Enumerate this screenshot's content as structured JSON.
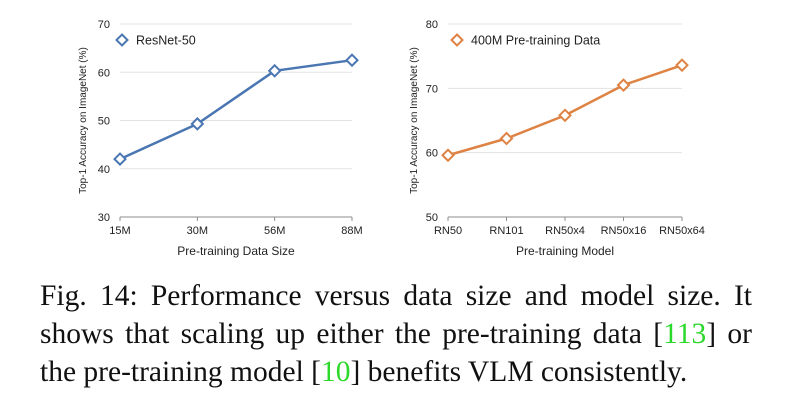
{
  "chart_data": [
    {
      "type": "line",
      "categories": [
        "15M",
        "30M",
        "56M",
        "88M"
      ],
      "series": [
        {
          "name": "ResNet-50",
          "values": [
            42,
            49.3,
            60.3,
            62.5
          ],
          "color": "#4a76b2"
        }
      ],
      "xlabel": "Pre-training Data Size",
      "ylabel": "Top-1 Accuracy on ImageNet (%)",
      "ylim": [
        30,
        70
      ],
      "yticks": [
        30,
        40,
        50,
        60,
        70
      ],
      "grid": true,
      "legend": "top-left"
    },
    {
      "type": "line",
      "categories": [
        "RN50",
        "RN101",
        "RN50x4",
        "RN50x16",
        "RN50x64"
      ],
      "series": [
        {
          "name": "400M Pre-training Data",
          "values": [
            59.6,
            62.2,
            65.8,
            70.5,
            73.6
          ],
          "color": "#de8344"
        }
      ],
      "xlabel": "Pre-training Model",
      "ylabel": "Top-1 Accuracy on ImageNet (%)",
      "ylim": [
        50,
        80
      ],
      "yticks": [
        50,
        60,
        70,
        80
      ],
      "grid": true,
      "legend": "top-left"
    }
  ],
  "caption": {
    "prefix": "Fig. 14: Performance versus data size and model size. It shows that scaling up either the pre-training data [",
    "ref1": "113",
    "middle": "] or the pre-training model [",
    "ref2": "10",
    "suffix": "] benefits VLM consistently."
  }
}
